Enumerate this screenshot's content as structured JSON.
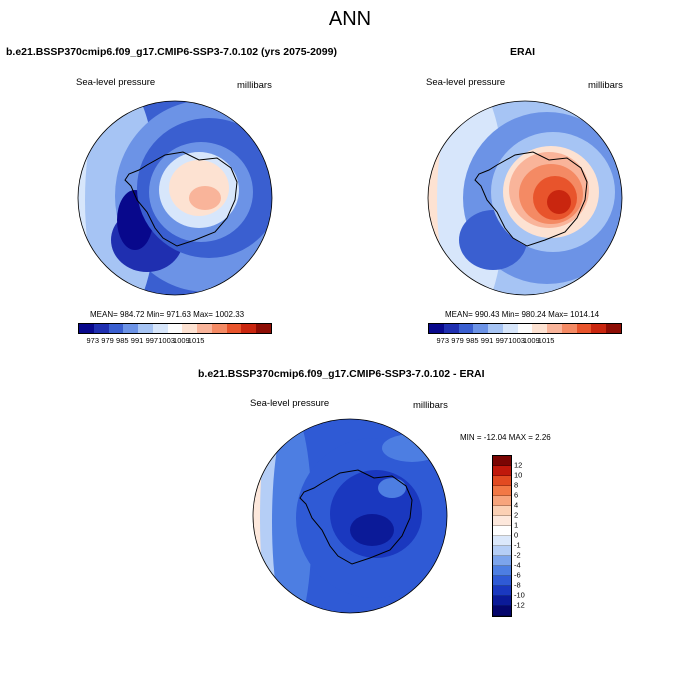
{
  "title": "ANN",
  "panels": [
    {
      "title": "b.e21.BSSP370cmip6.f09_g17.CMIP6-SSP3-7.0.102 (yrs 2075-2099)",
      "variable": "Sea-level pressure",
      "units": "millibars",
      "stats": "MEAN= 984.72  Min= 971.63  Max= 1002.33",
      "colorbar_ticks": [
        "973",
        "979",
        "985",
        "991",
        "997",
        "1003",
        "1009",
        "1015"
      ]
    },
    {
      "title": "ERAI",
      "variable": "Sea-level pressure",
      "units": "millibars",
      "stats": "MEAN= 990.43  Min= 980.24  Max= 1014.14",
      "colorbar_ticks": [
        "973",
        "979",
        "985",
        "991",
        "997",
        "1003",
        "1009",
        "1015"
      ]
    },
    {
      "title": "b.e21.BSSP370cmip6.f09_g17.CMIP6-SSP3-7.0.102 - ERAI",
      "variable": "Sea-level pressure",
      "units": "millibars",
      "stats": "MIN = -12.04 MAX =   2.26",
      "colorbar_ticks": [
        "12",
        "10",
        "8",
        "6",
        "4",
        "2",
        "1",
        "0",
        "-1",
        "-2",
        "-4",
        "-6",
        "-8",
        "-10",
        "-12"
      ]
    }
  ],
  "colors": {
    "abs_scale": [
      "#08088c",
      "#1f2fb0",
      "#3a5fd0",
      "#6c93e6",
      "#a6c4f4",
      "#d7e6fb",
      "#fdfdfd",
      "#fde2d2",
      "#f9b49a",
      "#f48a64",
      "#e8542c",
      "#c9260f",
      "#8d0d05"
    ],
    "diff_scale": [
      "#7a0503",
      "#c0180b",
      "#e24a21",
      "#f27845",
      "#f7a47c",
      "#fbd0b4",
      "#fde8dc",
      "#ffffff",
      "#dbe8fb",
      "#b5cef6",
      "#7ca4ec",
      "#4d7ee2",
      "#2f5ad5",
      "#1a38bf",
      "#0b1a98",
      "#05066c"
    ]
  }
}
